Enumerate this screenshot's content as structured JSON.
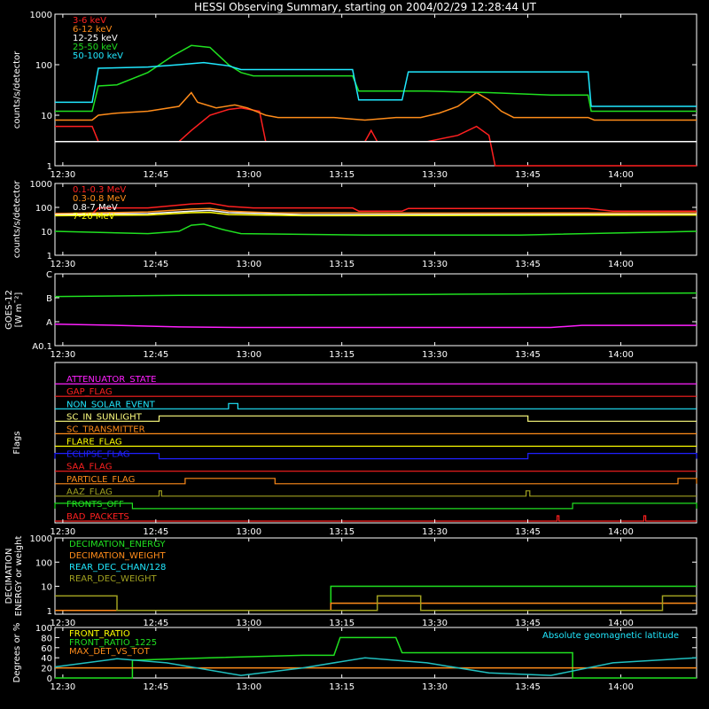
{
  "title": "HESSI Observing Summary, starting on 2004/02/29 12:28:44 UT",
  "x_ticks": [
    "12:30",
    "12:45",
    "13:00",
    "13:15",
    "13:30",
    "13:45",
    "14:00"
  ],
  "chart_data": [
    {
      "type": "line",
      "id": "lo_energy",
      "ylabel": "counts/s/detector",
      "ylog": true,
      "ylim": [
        1,
        1000
      ],
      "yticks": [
        "1",
        "10",
        "100",
        "1000"
      ],
      "xlim_minutes": [
        0,
        103.5
      ],
      "x_tick_minutes": [
        1.27,
        16.27,
        31.27,
        46.27,
        61.27,
        76.27,
        91.27
      ],
      "series": [
        {
          "name": "3-6 keV",
          "color": "#ff2020",
          "points": [
            [
              0,
              6
            ],
            [
              6,
              6
            ],
            [
              7,
              3
            ],
            [
              20,
              3
            ],
            [
              22,
              5
            ],
            [
              25,
              10
            ],
            [
              28,
              13
            ],
            [
              30,
              14
            ],
            [
              33,
              12
            ],
            [
              34,
              3
            ],
            [
              50,
              3
            ],
            [
              51,
              5
            ],
            [
              52,
              3
            ],
            [
              60,
              3
            ],
            [
              65,
              4
            ],
            [
              68,
              6
            ],
            [
              70,
              4
            ],
            [
              71,
              1
            ],
            [
              103.5,
              1
            ]
          ]
        },
        {
          "name": "6-12 keV",
          "color": "#ff8c1a",
          "points": [
            [
              0,
              8
            ],
            [
              6,
              8
            ],
            [
              7,
              10
            ],
            [
              10,
              11
            ],
            [
              15,
              12
            ],
            [
              20,
              15
            ],
            [
              22,
              28
            ],
            [
              23,
              18
            ],
            [
              26,
              14
            ],
            [
              29,
              16
            ],
            [
              31,
              14
            ],
            [
              34,
              10
            ],
            [
              36,
              9
            ],
            [
              45,
              9
            ],
            [
              50,
              8
            ],
            [
              55,
              9
            ],
            [
              59,
              9
            ],
            [
              62,
              11
            ],
            [
              65,
              15
            ],
            [
              68,
              28
            ],
            [
              70,
              20
            ],
            [
              72,
              12
            ],
            [
              74,
              9
            ],
            [
              80,
              9
            ],
            [
              86,
              9
            ],
            [
              87,
              8
            ],
            [
              103.5,
              8
            ]
          ]
        },
        {
          "name": "12-25 keV",
          "color": "#ffffff",
          "points": [
            [
              0,
              3
            ],
            [
              103.5,
              3
            ]
          ]
        },
        {
          "name": "25-50 keV",
          "color": "#20e020",
          "points": [
            [
              0,
              12
            ],
            [
              6,
              12
            ],
            [
              7,
              38
            ],
            [
              10,
              40
            ],
            [
              15,
              70
            ],
            [
              19,
              150
            ],
            [
              22,
              240
            ],
            [
              25,
              220
            ],
            [
              28,
              100
            ],
            [
              30,
              70
            ],
            [
              32,
              60
            ],
            [
              36,
              60
            ],
            [
              48,
              60
            ],
            [
              49,
              30
            ],
            [
              55,
              30
            ],
            [
              60,
              30
            ],
            [
              70,
              28
            ],
            [
              80,
              25
            ],
            [
              86,
              25
            ],
            [
              86.5,
              12
            ],
            [
              90,
              12
            ],
            [
              103.5,
              12
            ]
          ]
        },
        {
          "name": "50-100 keV",
          "color": "#20e8ff",
          "points": [
            [
              0,
              18
            ],
            [
              6,
              18
            ],
            [
              7,
              85
            ],
            [
              15,
              90
            ],
            [
              20,
              100
            ],
            [
              24,
              110
            ],
            [
              28,
              95
            ],
            [
              30,
              80
            ],
            [
              35,
              80
            ],
            [
              48,
              80
            ],
            [
              49,
              20
            ],
            [
              56,
              20
            ],
            [
              57,
              72
            ],
            [
              70,
              72
            ],
            [
              80,
              72
            ],
            [
              86,
              72
            ],
            [
              86.5,
              15
            ],
            [
              90,
              15
            ],
            [
              103.5,
              15
            ]
          ]
        }
      ]
    },
    {
      "type": "line",
      "id": "hi_energy",
      "ylabel": "counts/s/detector",
      "ylog": true,
      "ylim": [
        1,
        1000
      ],
      "yticks": [
        "1",
        "10",
        "100",
        "1000"
      ],
      "series": [
        {
          "name": "0.1-0.3 MeV",
          "color": "#ff2020",
          "points": [
            [
              0,
              55
            ],
            [
              6,
              55
            ],
            [
              7,
              95
            ],
            [
              15,
              95
            ],
            [
              22,
              140
            ],
            [
              25,
              150
            ],
            [
              28,
              110
            ],
            [
              32,
              95
            ],
            [
              48,
              95
            ],
            [
              49,
              70
            ],
            [
              56,
              70
            ],
            [
              57,
              90
            ],
            [
              86,
              90
            ],
            [
              90,
              70
            ],
            [
              103.5,
              70
            ]
          ]
        },
        {
          "name": "0.3-0.8 MeV",
          "color": "#ff8c1a",
          "points": [
            [
              0,
              55
            ],
            [
              15,
              65
            ],
            [
              22,
              85
            ],
            [
              25,
              90
            ],
            [
              28,
              70
            ],
            [
              35,
              60
            ],
            [
              60,
              58
            ],
            [
              103.5,
              60
            ]
          ]
        },
        {
          "name": "0.8-7 MeV",
          "color": "#ffffff",
          "points": [
            [
              0,
              50
            ],
            [
              15,
              55
            ],
            [
              22,
              70
            ],
            [
              25,
              75
            ],
            [
              28,
              60
            ],
            [
              40,
              50
            ],
            [
              103.5,
              52
            ]
          ]
        },
        {
          "name": "7-20 MeV",
          "color": "#ffff00",
          "points": [
            [
              0,
              45
            ],
            [
              15,
              48
            ],
            [
              22,
              60
            ],
            [
              25,
              62
            ],
            [
              28,
              50
            ],
            [
              40,
              45
            ],
            [
              103.5,
              48
            ]
          ]
        },
        {
          "name": "",
          "color": "#20e020",
          "points": [
            [
              0,
              10
            ],
            [
              15,
              8
            ],
            [
              20,
              10
            ],
            [
              22,
              18
            ],
            [
              24,
              20
            ],
            [
              27,
              12
            ],
            [
              30,
              8
            ],
            [
              50,
              7
            ],
            [
              75,
              7
            ],
            [
              103.5,
              10
            ]
          ]
        }
      ]
    },
    {
      "type": "line",
      "id": "goes",
      "ylabel": "GOES-12",
      "ylabel2": "[W m¯²]",
      "ylog": false,
      "ylim": [
        0,
        3
      ],
      "yticks": [
        "A0.1",
        "A",
        "B",
        "C"
      ],
      "series": [
        {
          "name": "",
          "color": "#20e020",
          "points": [
            [
              0,
              2.05
            ],
            [
              20,
              2.1
            ],
            [
              40,
              2.12
            ],
            [
              60,
              2.14
            ],
            [
              103.5,
              2.2
            ]
          ]
        },
        {
          "name": "",
          "color": "#ff20ff",
          "points": [
            [
              0,
              0.9
            ],
            [
              10,
              0.85
            ],
            [
              20,
              0.78
            ],
            [
              30,
              0.76
            ],
            [
              40,
              0.76
            ],
            [
              60,
              0.76
            ],
            [
              80,
              0.76
            ],
            [
              85,
              0.85
            ],
            [
              103.5,
              0.85
            ]
          ]
        }
      ]
    },
    {
      "type": "line",
      "id": "flags",
      "ylabel": "Flags",
      "flags": [
        {
          "name": "ATTENUATOR_STATE",
          "color": "#ff20ff",
          "on": []
        },
        {
          "name": "GAP_FLAG",
          "color": "#ff2020",
          "on": []
        },
        {
          "name": "NON_SOLAR_EVENT",
          "color": "#20e8ff",
          "on": [
            [
              28,
              29.5
            ]
          ]
        },
        {
          "name": "SC_IN_SUNLIGHT",
          "color": "#ffff80",
          "on": [
            [
              16.8,
              76.3
            ]
          ]
        },
        {
          "name": "SC_TRANSMITTER",
          "color": "#ff8c1a",
          "on": []
        },
        {
          "name": "FLARE_FLAG",
          "color": "#ffff00",
          "on": []
        },
        {
          "name": "ECLIPSE_FLAG",
          "color": "#2020ff",
          "on": [
            [
              0,
              16.8
            ],
            [
              76.3,
              103.5
            ]
          ]
        },
        {
          "name": "SAA_FLAG",
          "color": "#ff2020",
          "on": []
        },
        {
          "name": "PARTICLE_FLAG",
          "color": "#ff8c1a",
          "on": [
            [
              21,
              35.5
            ],
            [
              100.5,
              103.5
            ]
          ]
        },
        {
          "name": "AAZ_FLAG",
          "color": "#a0a020",
          "on": [
            [
              16.8,
              17.2
            ],
            [
              76.0,
              76.6
            ]
          ]
        },
        {
          "name": "FRONTS_OFF",
          "color": "#20e020",
          "on": [
            [
              0,
              12.5
            ],
            [
              83.5,
              103.5
            ]
          ]
        },
        {
          "name": "BAD_PACKETS",
          "color": "#ff2020",
          "on": [
            [
              81,
              81.3
            ],
            [
              95,
              95.3
            ]
          ]
        }
      ]
    },
    {
      "type": "line",
      "id": "decimation",
      "ylabel": "DECIMATION",
      "ylabel2": "ENERGY or weight",
      "ylog": true,
      "ylim": [
        0.7,
        1000
      ],
      "yticks": [
        "1",
        "10",
        "100",
        "1000"
      ],
      "series": [
        {
          "name": "DECIMATION_ENERGY",
          "color": "#20e020",
          "points": [
            [
              0,
              1
            ],
            [
              44.5,
              1
            ],
            [
              44.5,
              10
            ],
            [
              103.5,
              10
            ]
          ]
        },
        {
          "name": "DECIMATION_WEIGHT",
          "color": "#ff8c1a",
          "points": [
            [
              0,
              1
            ],
            [
              44.5,
              1
            ],
            [
              44.5,
              2
            ],
            [
              103.5,
              2
            ]
          ]
        },
        {
          "name": "REAR_DEC_CHAN/128",
          "color": "#20e8ff",
          "points": []
        },
        {
          "name": "REAR_DEC_WEIGHT",
          "color": "#a0a020",
          "points": [
            [
              0,
              4
            ],
            [
              10,
              4
            ],
            [
              10,
              1
            ],
            [
              52,
              1
            ],
            [
              52,
              4
            ],
            [
              59,
              4
            ],
            [
              59,
              1
            ],
            [
              98,
              1
            ],
            [
              98,
              4
            ],
            [
              103.5,
              4
            ]
          ]
        }
      ]
    },
    {
      "type": "line",
      "id": "ratio",
      "ylabel": "Degrees or %",
      "ylim": [
        0,
        100
      ],
      "yticks": [
        "0",
        "20",
        "40",
        "60",
        "80",
        "100"
      ],
      "annotation": "Absolute geomagnetic latitude",
      "series": [
        {
          "name": "FRONT_RATIO",
          "color": "#ffff00",
          "points": []
        },
        {
          "name": "FRONT_RATIO_1225",
          "color": "#20e020",
          "points": [
            [
              0,
              0
            ],
            [
              12.5,
              0
            ],
            [
              12.5,
              35
            ],
            [
              25,
              40
            ],
            [
              40,
              45
            ],
            [
              45,
              45
            ],
            [
              46,
              80
            ],
            [
              55,
              80
            ],
            [
              56,
              50
            ],
            [
              75,
              50
            ],
            [
              83.5,
              50
            ],
            [
              83.5,
              0
            ],
            [
              103.5,
              0
            ]
          ]
        },
        {
          "name": "MAX_DET_VS_TOT",
          "color": "#ff8c1a",
          "points": [
            [
              0,
              20
            ],
            [
              30,
              20
            ],
            [
              60,
              20
            ],
            [
              103.5,
              20
            ]
          ]
        },
        {
          "name": "",
          "color": "#20c0c0",
          "points": [
            [
              0,
              22
            ],
            [
              10,
              38
            ],
            [
              18,
              30
            ],
            [
              30,
              5
            ],
            [
              40,
              20
            ],
            [
              50,
              40
            ],
            [
              60,
              30
            ],
            [
              70,
              10
            ],
            [
              80,
              5
            ],
            [
              90,
              30
            ],
            [
              103.5,
              40
            ]
          ]
        }
      ]
    }
  ]
}
